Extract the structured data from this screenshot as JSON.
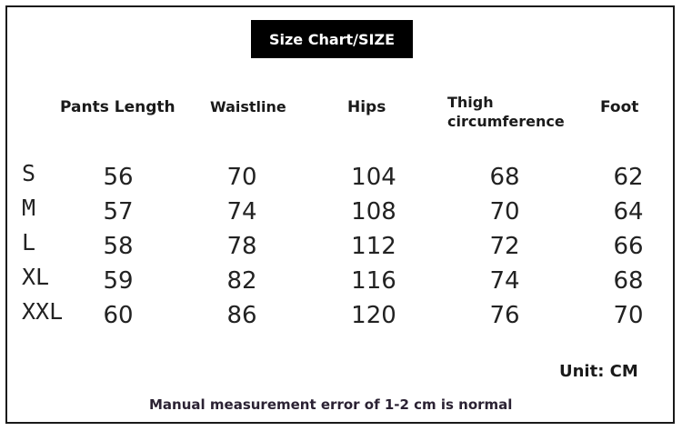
{
  "title": "Size Chart/SIZE",
  "headers": [
    "Pants Length",
    "Waistline",
    "Hips",
    "Thigh",
    "circumference",
    "Foot"
  ],
  "rows": [
    {
      "size": "S",
      "values": [
        "56",
        "70",
        "104",
        "68",
        "62"
      ]
    },
    {
      "size": "M",
      "values": [
        "57",
        "74",
        "108",
        "70",
        "64"
      ]
    },
    {
      "size": "L",
      "values": [
        "58",
        "78",
        "112",
        "72",
        "66"
      ]
    },
    {
      "size": "XL",
      "values": [
        "59",
        "82",
        "116",
        "74",
        "68"
      ]
    },
    {
      "size": "XXL",
      "values": [
        "60",
        "86",
        "120",
        "76",
        "70"
      ]
    }
  ],
  "unit": "Unit: CM",
  "note": "Manual measurement error of 1-2 cm is normal"
}
